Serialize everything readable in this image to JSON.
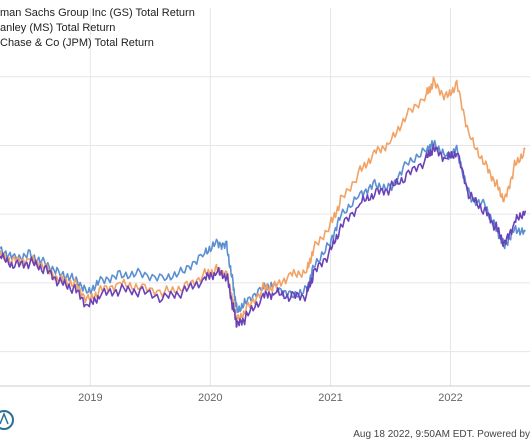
{
  "chart_data": {
    "type": "line",
    "series": [
      {
        "name": "man Sachs Group Inc (GS) Total Return",
        "color": "#5a8fd0",
        "points": [
          [
            "2018-04-01",
            60
          ],
          [
            "2018-05-15",
            55
          ],
          [
            "2018-07-01",
            57
          ],
          [
            "2018-08-15",
            52
          ],
          [
            "2018-10-01",
            46
          ],
          [
            "2018-11-15",
            43
          ],
          [
            "2018-12-25",
            35
          ],
          [
            "2019-02-01",
            42
          ],
          [
            "2019-04-01",
            45
          ],
          [
            "2019-06-01",
            46
          ],
          [
            "2019-08-15",
            43
          ],
          [
            "2019-10-15",
            48
          ],
          [
            "2019-12-15",
            58
          ],
          [
            "2020-01-20",
            64
          ],
          [
            "2020-02-20",
            62
          ],
          [
            "2020-03-10",
            40
          ],
          [
            "2020-03-23",
            24
          ],
          [
            "2020-04-20",
            30
          ],
          [
            "2020-06-10",
            38
          ],
          [
            "2020-07-15",
            39
          ],
          [
            "2020-09-01",
            33
          ],
          [
            "2020-10-20",
            36
          ],
          [
            "2020-11-10",
            50
          ],
          [
            "2020-12-31",
            64
          ],
          [
            "2021-02-01",
            80
          ],
          [
            "2021-04-01",
            92
          ],
          [
            "2021-05-15",
            98
          ],
          [
            "2021-07-01",
            95
          ],
          [
            "2021-08-20",
            110
          ],
          [
            "2021-10-20",
            118
          ],
          [
            "2021-11-10",
            122
          ],
          [
            "2021-12-20",
            114
          ],
          [
            "2022-01-20",
            118
          ],
          [
            "2022-03-01",
            90
          ],
          [
            "2022-04-15",
            86
          ],
          [
            "2022-05-20",
            72
          ],
          [
            "2022-06-15",
            62
          ],
          [
            "2022-07-15",
            72
          ],
          [
            "2022-08-17",
            70
          ]
        ]
      },
      {
        "name": "anley (MS) Total Return",
        "color": "#f2a265",
        "points": [
          [
            "2018-04-01",
            56
          ],
          [
            "2018-05-15",
            53
          ],
          [
            "2018-07-01",
            54
          ],
          [
            "2018-08-15",
            50
          ],
          [
            "2018-10-01",
            42
          ],
          [
            "2018-11-15",
            40
          ],
          [
            "2018-12-25",
            30
          ],
          [
            "2019-02-01",
            36
          ],
          [
            "2019-04-01",
            40
          ],
          [
            "2019-06-01",
            38
          ],
          [
            "2019-08-15",
            35
          ],
          [
            "2019-10-15",
            38
          ],
          [
            "2019-12-15",
            45
          ],
          [
            "2020-01-20",
            48
          ],
          [
            "2020-02-20",
            46
          ],
          [
            "2020-03-10",
            30
          ],
          [
            "2020-03-23",
            18
          ],
          [
            "2020-04-20",
            25
          ],
          [
            "2020-06-10",
            37
          ],
          [
            "2020-07-15",
            38
          ],
          [
            "2020-09-01",
            45
          ],
          [
            "2020-10-20",
            47
          ],
          [
            "2020-11-10",
            60
          ],
          [
            "2020-12-31",
            74
          ],
          [
            "2021-02-01",
            88
          ],
          [
            "2021-04-01",
            105
          ],
          [
            "2021-05-15",
            116
          ],
          [
            "2021-07-01",
            122
          ],
          [
            "2021-08-20",
            138
          ],
          [
            "2021-10-20",
            150
          ],
          [
            "2021-11-10",
            157
          ],
          [
            "2021-12-20",
            148
          ],
          [
            "2022-01-20",
            156
          ],
          [
            "2022-03-01",
            125
          ],
          [
            "2022-04-15",
            110
          ],
          [
            "2022-05-20",
            98
          ],
          [
            "2022-06-15",
            88
          ],
          [
            "2022-07-15",
            108
          ],
          [
            "2022-08-17",
            118
          ]
        ]
      },
      {
        "name": "Chase & Co (JPM) Total Return",
        "color": "#6a42b8",
        "points": [
          [
            "2018-04-01",
            55
          ],
          [
            "2018-05-15",
            50
          ],
          [
            "2018-07-01",
            52
          ],
          [
            "2018-08-15",
            48
          ],
          [
            "2018-10-01",
            40
          ],
          [
            "2018-11-15",
            36
          ],
          [
            "2018-12-25",
            26
          ],
          [
            "2019-02-01",
            33
          ],
          [
            "2019-04-01",
            36
          ],
          [
            "2019-06-01",
            35
          ],
          [
            "2019-08-15",
            31
          ],
          [
            "2019-10-15",
            35
          ],
          [
            "2019-12-15",
            42
          ],
          [
            "2020-01-20",
            46
          ],
          [
            "2020-02-20",
            44
          ],
          [
            "2020-03-10",
            26
          ],
          [
            "2020-03-23",
            15
          ],
          [
            "2020-04-20",
            20
          ],
          [
            "2020-06-10",
            32
          ],
          [
            "2020-07-15",
            34
          ],
          [
            "2020-09-01",
            32
          ],
          [
            "2020-10-20",
            33
          ],
          [
            "2020-11-10",
            45
          ],
          [
            "2020-12-31",
            58
          ],
          [
            "2021-02-01",
            72
          ],
          [
            "2021-04-01",
            86
          ],
          [
            "2021-05-15",
            92
          ],
          [
            "2021-07-01",
            95
          ],
          [
            "2021-08-20",
            102
          ],
          [
            "2021-10-20",
            112
          ],
          [
            "2021-11-10",
            118
          ],
          [
            "2021-12-20",
            112
          ],
          [
            "2022-01-20",
            116
          ],
          [
            "2022-03-01",
            90
          ],
          [
            "2022-04-15",
            82
          ],
          [
            "2022-05-20",
            72
          ],
          [
            "2022-06-15",
            62
          ],
          [
            "2022-07-15",
            75
          ],
          [
            "2022-08-17",
            82
          ]
        ]
      }
    ],
    "x_ticks": [
      "2019",
      "2020",
      "2021",
      "2022"
    ],
    "xlim": [
      "2018-04-01",
      "2022-08-31"
    ],
    "ylim": [
      -20,
      200
    ],
    "grid": true,
    "legend_placement": "top-left"
  },
  "footer": {
    "timestamp": "Aug 18 2022, 9:50AM EDT. Powered by"
  }
}
